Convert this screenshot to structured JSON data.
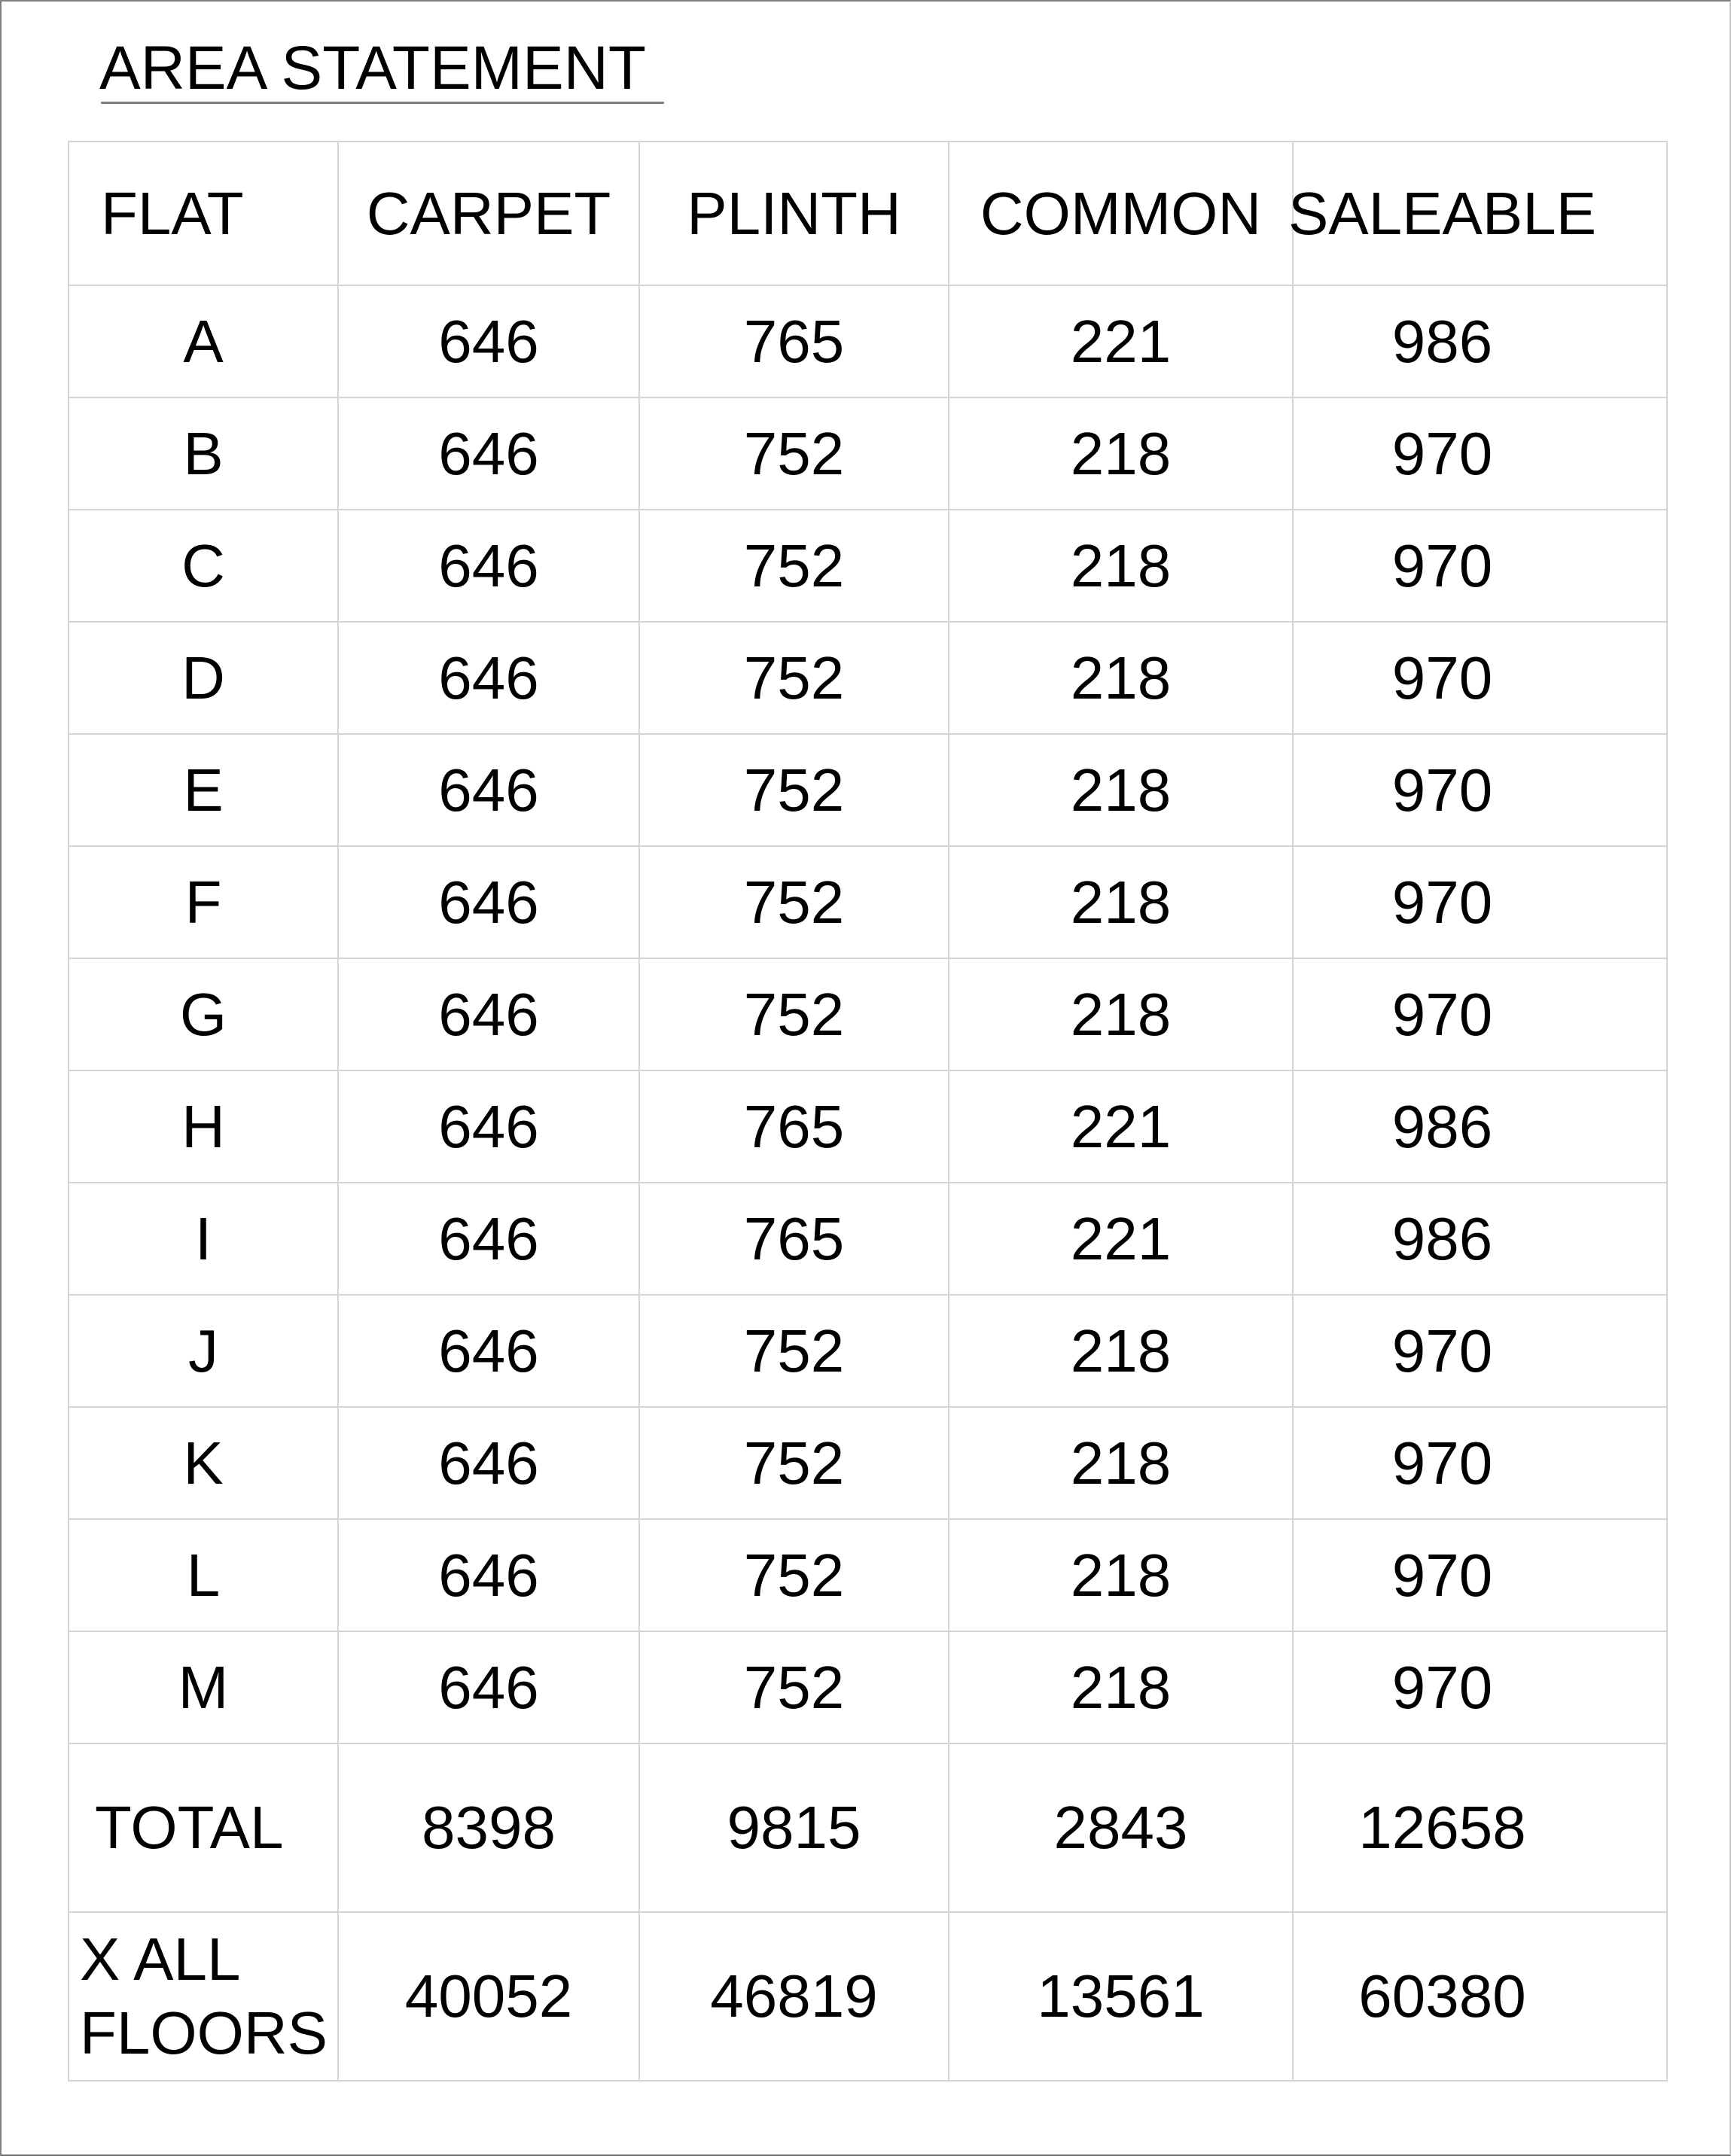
{
  "title": "AREA STATEMENT",
  "columns": [
    "FLAT",
    "CARPET",
    "PLINTH",
    "COMMON",
    "SALEABLE"
  ],
  "rows": [
    [
      "A",
      "646",
      "765",
      "221",
      "986"
    ],
    [
      "B",
      "646",
      "752",
      "218",
      "970"
    ],
    [
      "C",
      "646",
      "752",
      "218",
      "970"
    ],
    [
      "D",
      "646",
      "752",
      "218",
      "970"
    ],
    [
      "E",
      "646",
      "752",
      "218",
      "970"
    ],
    [
      "F",
      "646",
      "752",
      "218",
      "970"
    ],
    [
      "G",
      "646",
      "752",
      "218",
      "970"
    ],
    [
      "H",
      "646",
      "765",
      "221",
      "986"
    ],
    [
      "I",
      "646",
      "765",
      "221",
      "986"
    ],
    [
      "J",
      "646",
      "752",
      "218",
      "970"
    ],
    [
      "K",
      "646",
      "752",
      "218",
      "970"
    ],
    [
      "L",
      "646",
      "752",
      "218",
      "970"
    ],
    [
      "M",
      "646",
      "752",
      "218",
      "970"
    ]
  ],
  "total": [
    "TOTAL",
    "8398",
    "9815",
    "2843",
    "12658"
  ],
  "all_floors": [
    "X ALL FLOORS",
    "40052",
    "46819",
    "13561",
    "60380"
  ]
}
